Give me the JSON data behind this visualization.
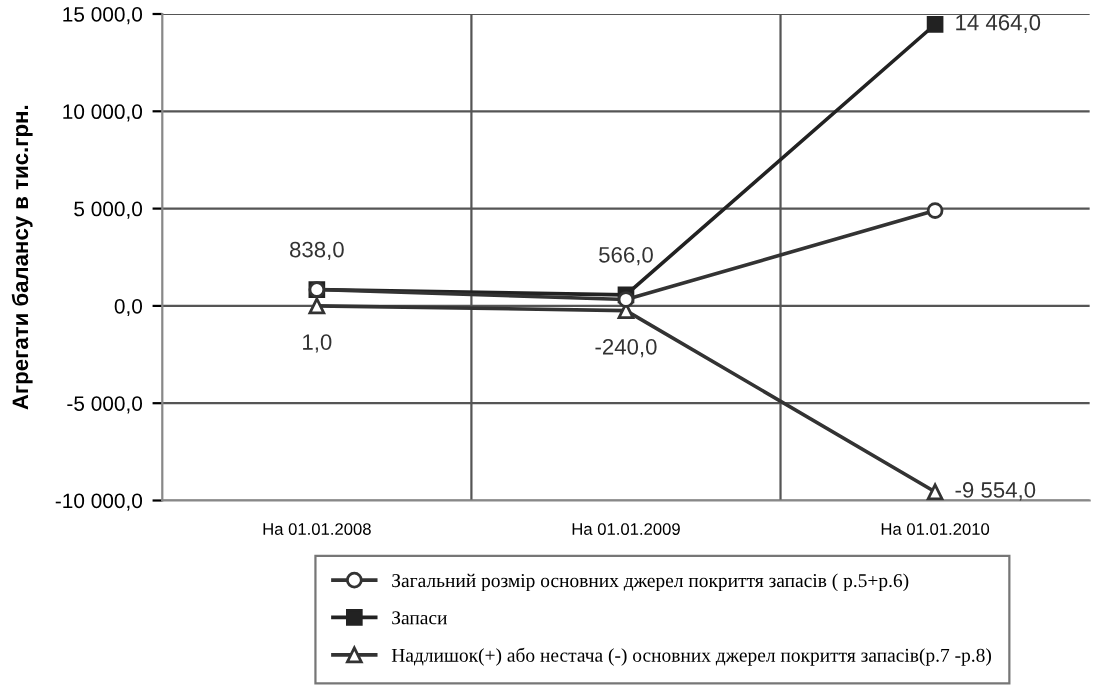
{
  "chart_data": {
    "type": "line",
    "ylabel": "Агрегати балансу в тис.грн.",
    "categories": [
      "На 01.01.2008",
      "На 01.01.2009",
      "На 01.01.2010"
    ],
    "ylim": [
      -10000,
      15000
    ],
    "yticks": [
      {
        "value": -10000,
        "label": "-10 000,0"
      },
      {
        "value": -5000,
        "label": "-5 000,0"
      },
      {
        "value": 0,
        "label": "0,0"
      },
      {
        "value": 5000,
        "label": "5 000,0"
      },
      {
        "value": 10000,
        "label": "10 000,0"
      },
      {
        "value": 15000,
        "label": "15 000,0"
      }
    ],
    "grid": true,
    "legend": "bottom",
    "series": [
      {
        "name": "Загальний розмір основних джерел покриття запасів ( р.5+р.6)",
        "color": "#333333",
        "marker": "circle",
        "values": [
          840,
          330,
          4900
        ]
      },
      {
        "name": "Запаси",
        "color": "#222222",
        "marker": "square",
        "values": [
          838,
          566,
          14464
        ],
        "value_labels": [
          "838,0",
          "566,0",
          "14 464,0"
        ]
      },
      {
        "name": "Надлишок(+) або нестача (-) основних джерел покриття запасів(р.7 -р.8)",
        "color": "#333333",
        "marker": "triangle",
        "values": [
          1,
          -240,
          -9554
        ],
        "value_labels": [
          "1,0",
          "-240,0",
          "-9 554,0"
        ]
      }
    ]
  }
}
